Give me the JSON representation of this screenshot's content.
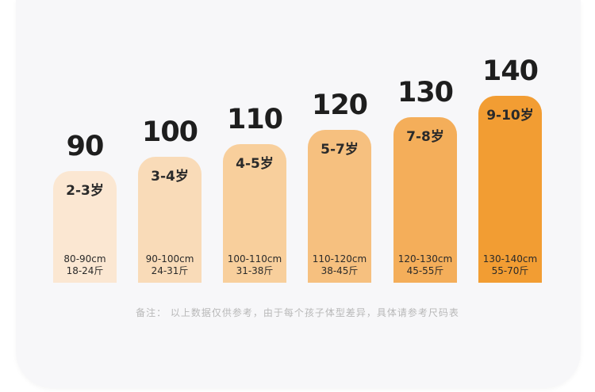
{
  "sizes": [
    {
      "height": "90",
      "age": "2-3岁",
      "cm": "80-90cm",
      "jin": "18-24斤",
      "color": "#fbe7d2"
    },
    {
      "height": "100",
      "age": "3-4岁",
      "cm": "90-100cm",
      "jin": "24-31斤",
      "color": "#f9dbb8"
    },
    {
      "height": "110",
      "age": "4-5岁",
      "cm": "100-110cm",
      "jin": "31-38斤",
      "color": "#f8cf9c"
    },
    {
      "height": "120",
      "age": "5-7岁",
      "cm": "110-120cm",
      "jin": "38-45斤",
      "color": "#f6c07f"
    },
    {
      "height": "130",
      "age": "7-8岁",
      "cm": "120-130cm",
      "jin": "45-55斤",
      "color": "#f4ae5a"
    },
    {
      "height": "140",
      "age": "9-10岁",
      "cm": "130-140cm",
      "jin": "55-70斤",
      "color": "#f29d33"
    }
  ],
  "footnote": "备注：  以上数据仅供参考，由于每个孩子体型差异，具体请参考尺码表"
}
